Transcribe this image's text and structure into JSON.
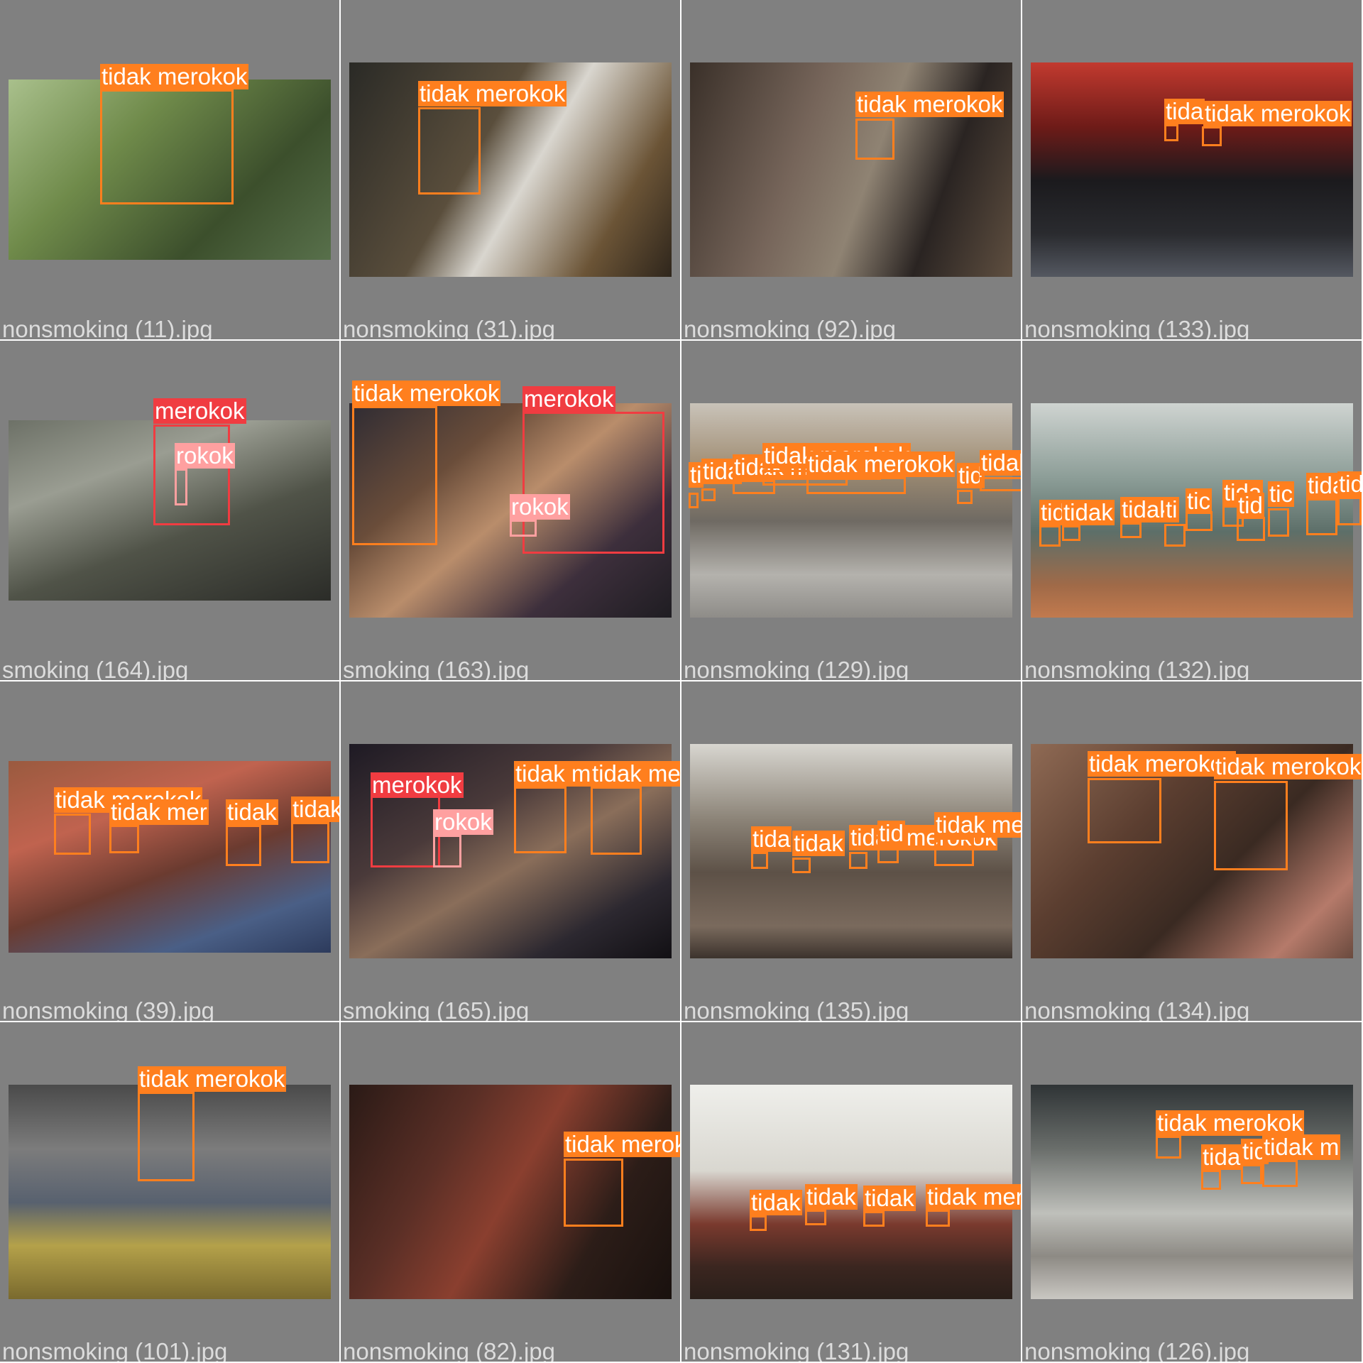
{
  "title": "",
  "palette": {
    "cell_background": "#808080",
    "filename_text": "#dcdcdc",
    "tidak_merokok": "#ff7f1e",
    "merokok": "#f03c41",
    "rokok": "#ffa0a0"
  },
  "class_colors": {
    "tidak merokok": "#ff7f1e",
    "merokok": "#f03c41",
    "rokok": "#ffa0a0"
  },
  "tiles": [
    {
      "filename": "nonsmoking (11).jpg",
      "scene": "outdoor",
      "detections": [
        {
          "label": "tidak merokok"
        }
      ]
    },
    {
      "filename": "nonsmoking (31).jpg",
      "scene": "cafe",
      "detections": [
        {
          "label": "tidak merokok"
        }
      ]
    },
    {
      "filename": "nonsmoking (92).jpg",
      "scene": "bar",
      "detections": [
        {
          "label": "tidak merokok"
        }
      ]
    },
    {
      "filename": "nonsmoking (133).jpg",
      "scene": "street-night",
      "detections": [
        {
          "label": "tida"
        },
        {
          "label": "tidak merokok"
        }
      ]
    },
    {
      "filename": "smoking (164).jpg",
      "scene": "urban",
      "detections": [
        {
          "label": "merokok"
        },
        {
          "label": "rokok"
        }
      ]
    },
    {
      "filename": "smoking (163).jpg",
      "scene": "night",
      "detections": [
        {
          "label": "tidak merokok"
        },
        {
          "label": "merokok"
        },
        {
          "label": "rokok"
        }
      ]
    },
    {
      "filename": "nonsmoking (129).jpg",
      "scene": "street-day",
      "detections": [
        {
          "label": "ti"
        },
        {
          "label": "tida"
        },
        {
          "label": "tidak merokok"
        },
        {
          "label": "tidak merokok"
        },
        {
          "label": "tidak merokok"
        },
        {
          "label": "tid"
        },
        {
          "label": "tidak merokok"
        }
      ]
    },
    {
      "filename": "nonsmoking (132).jpg",
      "scene": "cafe-bright",
      "detections": [
        {
          "label": "tid"
        },
        {
          "label": "tidak"
        },
        {
          "label": "tidak"
        },
        {
          "label": "ti"
        },
        {
          "label": "tic"
        },
        {
          "label": "tida"
        },
        {
          "label": "tid"
        },
        {
          "label": "tic"
        },
        {
          "label": "tida"
        },
        {
          "label": "tida"
        }
      ]
    },
    {
      "filename": "nonsmoking (39).jpg",
      "scene": "restaurant",
      "detections": [
        {
          "label": "tidak merokok"
        },
        {
          "label": "tidak mer"
        },
        {
          "label": "tidak"
        },
        {
          "label": "tidak merokok"
        }
      ]
    },
    {
      "filename": "smoking (165).jpg",
      "scene": "pub",
      "detections": [
        {
          "label": "merokok"
        },
        {
          "label": "rokok"
        },
        {
          "label": "tidak merokok"
        },
        {
          "label": "tidak merokok"
        }
      ]
    },
    {
      "filename": "nonsmoking (135).jpg",
      "scene": "dining-hall",
      "detections": [
        {
          "label": "tida"
        },
        {
          "label": "tidak"
        },
        {
          "label": "tidak merokok"
        },
        {
          "label": "tid"
        },
        {
          "label": "tidak merokok"
        }
      ]
    },
    {
      "filename": "nonsmoking (134).jpg",
      "scene": "warm-indoor",
      "detections": [
        {
          "label": "tidak merokok"
        },
        {
          "label": "tidak merokok"
        }
      ]
    },
    {
      "filename": "nonsmoking (101).jpg",
      "scene": "studio",
      "detections": [
        {
          "label": "tidak merokok"
        }
      ]
    },
    {
      "filename": "nonsmoking (82).jpg",
      "scene": "dark-bar",
      "detections": [
        {
          "label": "tidak merokok"
        }
      ]
    },
    {
      "filename": "nonsmoking (131).jpg",
      "scene": "diner",
      "detections": [
        {
          "label": "tidak"
        },
        {
          "label": "tidak"
        },
        {
          "label": "tidak"
        },
        {
          "label": "tidak merokok"
        }
      ]
    },
    {
      "filename": "nonsmoking (126).jpg",
      "scene": "office",
      "detections": [
        {
          "label": "tidak merokok"
        },
        {
          "label": "tida"
        },
        {
          "label": "tid"
        },
        {
          "label": "tidak m"
        }
      ]
    }
  ]
}
